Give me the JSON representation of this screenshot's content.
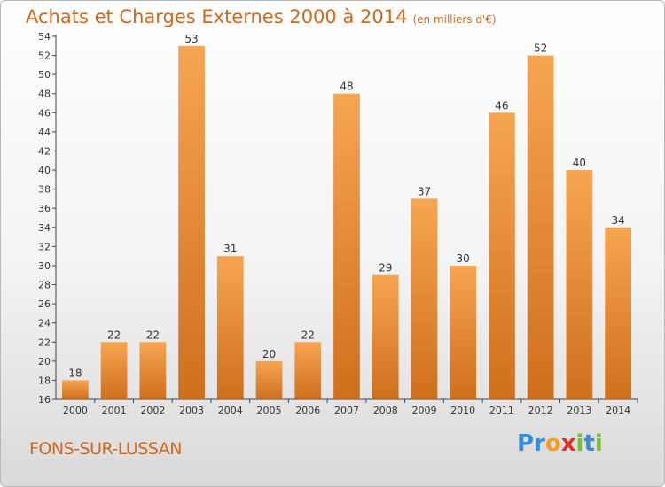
{
  "header": {
    "title": "Achats et Charges Externes 2000 à 2014",
    "unit": "(en milliers d'€)"
  },
  "footer": {
    "commune": "FONS-SUR-LUSSAN",
    "logo_letters": [
      "P",
      "r",
      "o",
      "x",
      "i",
      "t",
      "i"
    ],
    "logo_colors": [
      "#3a8ed6",
      "#3a8ed6",
      "#f0a020",
      "#e0302a",
      "#7cbf2a",
      "#3a8ed6",
      "#7cbf2a"
    ]
  },
  "colors": {
    "bar_light": "#f7a552",
    "bar_dark": "#cf6f1c",
    "title": "#d4681a"
  },
  "chart_data": {
    "type": "bar",
    "categories": [
      "2000",
      "2001",
      "2002",
      "2003",
      "2004",
      "2005",
      "2006",
      "2007",
      "2008",
      "2009",
      "2010",
      "2011",
      "2012",
      "2013",
      "2014"
    ],
    "values": [
      18,
      22,
      22,
      53,
      31,
      20,
      22,
      48,
      29,
      37,
      30,
      46,
      52,
      40,
      34
    ],
    "title": "Achats et Charges Externes 2000 à 2014",
    "ylim": [
      16,
      54
    ],
    "yticks": [
      16,
      18,
      20,
      22,
      24,
      26,
      28,
      30,
      32,
      34,
      36,
      38,
      40,
      42,
      44,
      46,
      48,
      50,
      52,
      54
    ],
    "grid": false,
    "legend": "none"
  }
}
